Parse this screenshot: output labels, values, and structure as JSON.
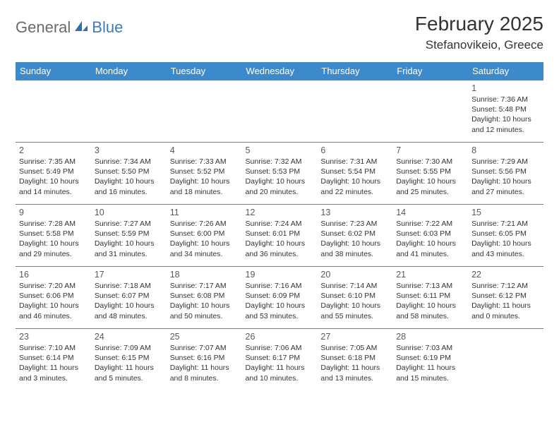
{
  "logo": {
    "part1": "General",
    "part2": "Blue"
  },
  "title": "February 2025",
  "location": "Stefanovikeio, Greece",
  "colors": {
    "header_bg": "#3c8acb",
    "header_text": "#ffffff",
    "cell_border": "#3c8acb",
    "logo_gray": "#6a6a6a",
    "logo_blue": "#3a7cc0",
    "text": "#333333"
  },
  "weekdays": [
    "Sunday",
    "Monday",
    "Tuesday",
    "Wednesday",
    "Thursday",
    "Friday",
    "Saturday"
  ],
  "weeks": [
    [
      null,
      null,
      null,
      null,
      null,
      null,
      {
        "n": "1",
        "sunrise": "Sunrise: 7:36 AM",
        "sunset": "Sunset: 5:48 PM",
        "dl1": "Daylight: 10 hours",
        "dl2": "and 12 minutes."
      }
    ],
    [
      {
        "n": "2",
        "sunrise": "Sunrise: 7:35 AM",
        "sunset": "Sunset: 5:49 PM",
        "dl1": "Daylight: 10 hours",
        "dl2": "and 14 minutes."
      },
      {
        "n": "3",
        "sunrise": "Sunrise: 7:34 AM",
        "sunset": "Sunset: 5:50 PM",
        "dl1": "Daylight: 10 hours",
        "dl2": "and 16 minutes."
      },
      {
        "n": "4",
        "sunrise": "Sunrise: 7:33 AM",
        "sunset": "Sunset: 5:52 PM",
        "dl1": "Daylight: 10 hours",
        "dl2": "and 18 minutes."
      },
      {
        "n": "5",
        "sunrise": "Sunrise: 7:32 AM",
        "sunset": "Sunset: 5:53 PM",
        "dl1": "Daylight: 10 hours",
        "dl2": "and 20 minutes."
      },
      {
        "n": "6",
        "sunrise": "Sunrise: 7:31 AM",
        "sunset": "Sunset: 5:54 PM",
        "dl1": "Daylight: 10 hours",
        "dl2": "and 22 minutes."
      },
      {
        "n": "7",
        "sunrise": "Sunrise: 7:30 AM",
        "sunset": "Sunset: 5:55 PM",
        "dl1": "Daylight: 10 hours",
        "dl2": "and 25 minutes."
      },
      {
        "n": "8",
        "sunrise": "Sunrise: 7:29 AM",
        "sunset": "Sunset: 5:56 PM",
        "dl1": "Daylight: 10 hours",
        "dl2": "and 27 minutes."
      }
    ],
    [
      {
        "n": "9",
        "sunrise": "Sunrise: 7:28 AM",
        "sunset": "Sunset: 5:58 PM",
        "dl1": "Daylight: 10 hours",
        "dl2": "and 29 minutes."
      },
      {
        "n": "10",
        "sunrise": "Sunrise: 7:27 AM",
        "sunset": "Sunset: 5:59 PM",
        "dl1": "Daylight: 10 hours",
        "dl2": "and 31 minutes."
      },
      {
        "n": "11",
        "sunrise": "Sunrise: 7:26 AM",
        "sunset": "Sunset: 6:00 PM",
        "dl1": "Daylight: 10 hours",
        "dl2": "and 34 minutes."
      },
      {
        "n": "12",
        "sunrise": "Sunrise: 7:24 AM",
        "sunset": "Sunset: 6:01 PM",
        "dl1": "Daylight: 10 hours",
        "dl2": "and 36 minutes."
      },
      {
        "n": "13",
        "sunrise": "Sunrise: 7:23 AM",
        "sunset": "Sunset: 6:02 PM",
        "dl1": "Daylight: 10 hours",
        "dl2": "and 38 minutes."
      },
      {
        "n": "14",
        "sunrise": "Sunrise: 7:22 AM",
        "sunset": "Sunset: 6:03 PM",
        "dl1": "Daylight: 10 hours",
        "dl2": "and 41 minutes."
      },
      {
        "n": "15",
        "sunrise": "Sunrise: 7:21 AM",
        "sunset": "Sunset: 6:05 PM",
        "dl1": "Daylight: 10 hours",
        "dl2": "and 43 minutes."
      }
    ],
    [
      {
        "n": "16",
        "sunrise": "Sunrise: 7:20 AM",
        "sunset": "Sunset: 6:06 PM",
        "dl1": "Daylight: 10 hours",
        "dl2": "and 46 minutes."
      },
      {
        "n": "17",
        "sunrise": "Sunrise: 7:18 AM",
        "sunset": "Sunset: 6:07 PM",
        "dl1": "Daylight: 10 hours",
        "dl2": "and 48 minutes."
      },
      {
        "n": "18",
        "sunrise": "Sunrise: 7:17 AM",
        "sunset": "Sunset: 6:08 PM",
        "dl1": "Daylight: 10 hours",
        "dl2": "and 50 minutes."
      },
      {
        "n": "19",
        "sunrise": "Sunrise: 7:16 AM",
        "sunset": "Sunset: 6:09 PM",
        "dl1": "Daylight: 10 hours",
        "dl2": "and 53 minutes."
      },
      {
        "n": "20",
        "sunrise": "Sunrise: 7:14 AM",
        "sunset": "Sunset: 6:10 PM",
        "dl1": "Daylight: 10 hours",
        "dl2": "and 55 minutes."
      },
      {
        "n": "21",
        "sunrise": "Sunrise: 7:13 AM",
        "sunset": "Sunset: 6:11 PM",
        "dl1": "Daylight: 10 hours",
        "dl2": "and 58 minutes."
      },
      {
        "n": "22",
        "sunrise": "Sunrise: 7:12 AM",
        "sunset": "Sunset: 6:12 PM",
        "dl1": "Daylight: 11 hours",
        "dl2": "and 0 minutes."
      }
    ],
    [
      {
        "n": "23",
        "sunrise": "Sunrise: 7:10 AM",
        "sunset": "Sunset: 6:14 PM",
        "dl1": "Daylight: 11 hours",
        "dl2": "and 3 minutes."
      },
      {
        "n": "24",
        "sunrise": "Sunrise: 7:09 AM",
        "sunset": "Sunset: 6:15 PM",
        "dl1": "Daylight: 11 hours",
        "dl2": "and 5 minutes."
      },
      {
        "n": "25",
        "sunrise": "Sunrise: 7:07 AM",
        "sunset": "Sunset: 6:16 PM",
        "dl1": "Daylight: 11 hours",
        "dl2": "and 8 minutes."
      },
      {
        "n": "26",
        "sunrise": "Sunrise: 7:06 AM",
        "sunset": "Sunset: 6:17 PM",
        "dl1": "Daylight: 11 hours",
        "dl2": "and 10 minutes."
      },
      {
        "n": "27",
        "sunrise": "Sunrise: 7:05 AM",
        "sunset": "Sunset: 6:18 PM",
        "dl1": "Daylight: 11 hours",
        "dl2": "and 13 minutes."
      },
      {
        "n": "28",
        "sunrise": "Sunrise: 7:03 AM",
        "sunset": "Sunset: 6:19 PM",
        "dl1": "Daylight: 11 hours",
        "dl2": "and 15 minutes."
      },
      null
    ]
  ]
}
